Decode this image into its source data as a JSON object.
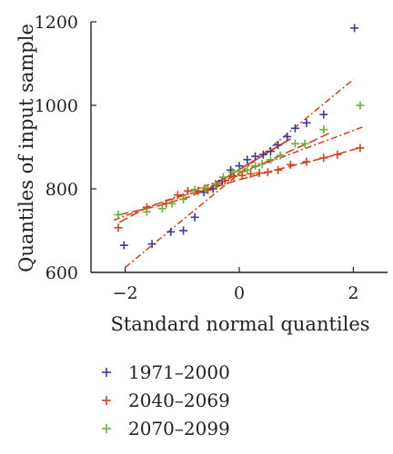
{
  "chart_data": {
    "type": "scatter",
    "xlabel": "Standard normal quantiles",
    "ylabel": "Quantiles of input sample",
    "xlim": [
      -2.6,
      2.6
    ],
    "ylim": [
      600,
      1200
    ],
    "xticks": [
      {
        "value": -2,
        "label": "−2"
      },
      {
        "value": 0,
        "label": "0"
      },
      {
        "value": 2,
        "label": "2"
      }
    ],
    "yticks": [
      {
        "value": 600,
        "label": "600"
      },
      {
        "value": 800,
        "label": "800"
      },
      {
        "value": 1000,
        "label": "1000"
      },
      {
        "value": 1200,
        "label": "1200"
      }
    ],
    "grid": false,
    "legend_position": "bottom",
    "marker": "+",
    "series": [
      {
        "name": "1971–2000",
        "color": "#3a3a9c",
        "points": [
          [
            -2.02,
            665
          ],
          [
            -1.53,
            668
          ],
          [
            -1.2,
            697
          ],
          [
            -0.98,
            700
          ],
          [
            -0.78,
            732
          ],
          [
            -0.62,
            792
          ],
          [
            -0.46,
            800
          ],
          [
            -0.3,
            820
          ],
          [
            -0.15,
            845
          ],
          [
            0.0,
            855
          ],
          [
            0.14,
            870
          ],
          [
            0.28,
            878
          ],
          [
            0.42,
            882
          ],
          [
            0.55,
            890
          ],
          [
            0.68,
            905
          ],
          [
            0.84,
            925
          ],
          [
            0.98,
            945
          ],
          [
            1.18,
            958
          ],
          [
            1.48,
            978
          ],
          [
            2.02,
            1185
          ]
        ],
        "fit_line": [
          [
            -2.0,
            612
          ],
          [
            2.0,
            1062
          ]
        ]
      },
      {
        "name": "2040–2069",
        "color": "#d6401a",
        "points": [
          [
            -2.12,
            707
          ],
          [
            -1.62,
            756
          ],
          [
            -1.28,
            765
          ],
          [
            -1.08,
            785
          ],
          [
            -0.9,
            795
          ],
          [
            -0.72,
            795
          ],
          [
            -0.55,
            797
          ],
          [
            -0.4,
            808
          ],
          [
            -0.25,
            820
          ],
          [
            -0.1,
            830
          ],
          [
            0.05,
            832
          ],
          [
            0.2,
            836
          ],
          [
            0.35,
            838
          ],
          [
            0.5,
            840
          ],
          [
            0.68,
            845
          ],
          [
            0.9,
            858
          ],
          [
            1.18,
            865
          ],
          [
            1.48,
            874
          ],
          [
            1.72,
            882
          ],
          [
            2.12,
            898
          ]
        ],
        "fit_line": [
          [
            -2.2,
            725
          ],
          [
            2.2,
            950
          ]
        ],
        "smooth_line": [
          [
            -2.1,
            720
          ],
          [
            -1.6,
            757
          ],
          [
            -1.0,
            783
          ],
          [
            -0.4,
            805
          ],
          [
            0.0,
            822
          ],
          [
            0.5,
            840
          ],
          [
            1.0,
            858
          ],
          [
            1.6,
            878
          ],
          [
            2.15,
            900
          ]
        ]
      },
      {
        "name": "2070–2099",
        "color": "#6ab238",
        "points": [
          [
            -2.12,
            738
          ],
          [
            -1.62,
            745
          ],
          [
            -1.35,
            753
          ],
          [
            -1.18,
            765
          ],
          [
            -0.98,
            775
          ],
          [
            -0.78,
            798
          ],
          [
            -0.6,
            802
          ],
          [
            -0.42,
            812
          ],
          [
            -0.28,
            828
          ],
          [
            -0.12,
            840
          ],
          [
            0.0,
            842
          ],
          [
            0.14,
            845
          ],
          [
            0.28,
            855
          ],
          [
            0.4,
            860
          ],
          [
            0.55,
            870
          ],
          [
            0.72,
            880
          ],
          [
            0.98,
            908
          ],
          [
            1.15,
            908
          ],
          [
            1.48,
            942
          ],
          [
            2.12,
            1000
          ]
        ],
        "smooth_line": [
          [
            -2.1,
            738
          ],
          [
            -1.4,
            760
          ],
          [
            -0.9,
            780
          ],
          [
            -0.4,
            808
          ],
          [
            0.0,
            838
          ],
          [
            0.4,
            860
          ],
          [
            0.8,
            885
          ],
          [
            1.3,
            915
          ],
          [
            1.6,
            935
          ]
        ]
      }
    ]
  }
}
